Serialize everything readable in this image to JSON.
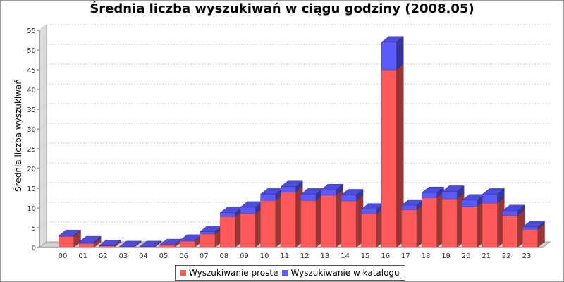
{
  "chart_data": {
    "type": "bar",
    "stacked": true,
    "three_d": true,
    "title": "Średnia liczba wyszukiwań w ciągu godziny (2008.05)",
    "xlabel": "",
    "ylabel": "Średnia liczba wyszukiwań",
    "ylim": [
      0,
      55
    ],
    "yticks": [
      0,
      5,
      10,
      15,
      20,
      25,
      30,
      35,
      40,
      45,
      50,
      55
    ],
    "grid": true,
    "legend_position": "bottom",
    "categories": [
      "00",
      "01",
      "02",
      "03",
      "04",
      "05",
      "06",
      "07",
      "08",
      "09",
      "10",
      "11",
      "12",
      "13",
      "14",
      "15",
      "16",
      "17",
      "18",
      "19",
      "20",
      "21",
      "22",
      "23"
    ],
    "series": [
      {
        "name": "Wyszukiwanie proste",
        "color": "#ff5a5a",
        "values": [
          2.8,
          1.0,
          0.4,
          0.1,
          0.1,
          0.6,
          1.6,
          3.4,
          7.8,
          8.6,
          11.9,
          14.0,
          11.9,
          13.2,
          11.8,
          8.5,
          45.0,
          9.5,
          12.6,
          12.3,
          10.4,
          11.2,
          8.1,
          4.6
        ]
      },
      {
        "name": "Wyszukiwanie w katalogu",
        "color": "#5a5aff",
        "values": [
          0.2,
          0.4,
          0.1,
          0.1,
          0.1,
          0.1,
          0.2,
          0.6,
          1.0,
          1.6,
          1.6,
          1.4,
          1.6,
          1.4,
          1.5,
          1.2,
          7.0,
          1.2,
          1.3,
          1.9,
          1.6,
          2.3,
          1.2,
          0.6
        ]
      }
    ]
  }
}
